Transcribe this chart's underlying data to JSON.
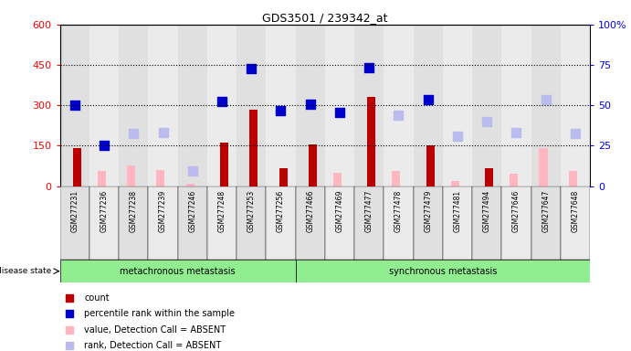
{
  "title": "GDS3501 / 239342_at",
  "samples": [
    "GSM277231",
    "GSM277236",
    "GSM277238",
    "GSM277239",
    "GSM277246",
    "GSM277248",
    "GSM277253",
    "GSM277256",
    "GSM277466",
    "GSM277469",
    "GSM277477",
    "GSM277478",
    "GSM277479",
    "GSM277481",
    "GSM277494",
    "GSM277646",
    "GSM277647",
    "GSM277648"
  ],
  "group1_label": "metachronous metastasis",
  "group2_label": "synchronous metastasis",
  "group1_count": 8,
  "group2_count": 10,
  "left_ylim": [
    0,
    600
  ],
  "right_ylim": [
    0,
    100
  ],
  "left_yticks": [
    0,
    150,
    300,
    450,
    600
  ],
  "right_yticks": [
    0,
    25,
    50,
    75,
    100
  ],
  "right_yticklabels": [
    "0",
    "25",
    "50",
    "75",
    "100%"
  ],
  "hlines": [
    150,
    300,
    450
  ],
  "red_bars": [
    140,
    0,
    0,
    0,
    0,
    160,
    285,
    65,
    155,
    0,
    330,
    0,
    150,
    0,
    65,
    0,
    0,
    0
  ],
  "pink_bars": [
    0,
    55,
    75,
    60,
    10,
    0,
    0,
    0,
    0,
    50,
    0,
    55,
    0,
    20,
    0,
    45,
    140,
    55
  ],
  "blue_squares": [
    300,
    150,
    0,
    0,
    0,
    315,
    435,
    280,
    305,
    275,
    440,
    0,
    320,
    0,
    0,
    0,
    0,
    0
  ],
  "light_blue_sq": [
    0,
    0,
    195,
    200,
    55,
    0,
    0,
    0,
    0,
    0,
    0,
    265,
    0,
    185,
    240,
    200,
    320,
    195
  ],
  "bar_color_red": "#BB0000",
  "bar_color_pink": "#FFB6C1",
  "sq_color_blue": "#0000CC",
  "sq_color_lblue": "#BBBBEE",
  "col_bg_odd": "#E0E0E0",
  "col_bg_even": "#EBEBEB",
  "group_color": "#90EE90",
  "disease_state_label": "disease state",
  "legend_items": [
    "count",
    "percentile rank within the sample",
    "value, Detection Call = ABSENT",
    "rank, Detection Call = ABSENT"
  ],
  "legend_colors": [
    "#BB0000",
    "#0000CC",
    "#FFB6C1",
    "#BBBBEE"
  ]
}
